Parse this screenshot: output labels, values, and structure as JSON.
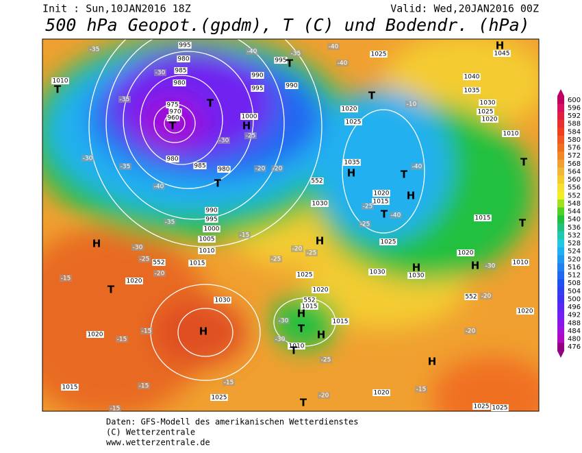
{
  "header": {
    "init": "Init : Sun,10JAN2016 18Z",
    "valid": "Valid: Wed,20JAN2016 00Z",
    "title": "500 hPa Geopot.(gpdm), T (C) und Bodendr. (hPa)"
  },
  "colorbar": {
    "ticks": [
      600,
      596,
      592,
      588,
      584,
      580,
      576,
      572,
      568,
      564,
      560,
      556,
      552,
      548,
      544,
      540,
      536,
      532,
      528,
      524,
      520,
      516,
      512,
      508,
      504,
      500,
      496,
      492,
      488,
      484,
      480,
      476
    ],
    "colors": [
      "#c00060",
      "#d81060",
      "#e02040",
      "#e83030",
      "#f04020",
      "#f05a20",
      "#f07020",
      "#f08828",
      "#f0a030",
      "#f0b838",
      "#f4cc30",
      "#f8e030",
      "#f0f020",
      "#a0e020",
      "#50d020",
      "#20c040",
      "#20c080",
      "#20c8b0",
      "#20c8e0",
      "#20b0f0",
      "#2098f0",
      "#2080f0",
      "#2068f0",
      "#2050f0",
      "#3040f0",
      "#4030f0",
      "#5a28f0",
      "#7020f0",
      "#8818e8",
      "#a010d8",
      "#b008c0",
      "#900080"
    ]
  },
  "map": {
    "labels": [
      "995",
      "980",
      "985",
      "980",
      "975",
      "970",
      "960",
      "980",
      "985",
      "980",
      "990",
      "995",
      "1000",
      "1005",
      "1010",
      "1015",
      "1020",
      "1030",
      "1020",
      "1015",
      "1025",
      "1020",
      "1025",
      "1025",
      "1010",
      "995",
      "990",
      "995",
      "990",
      "1000",
      "1025",
      "1020",
      "1025",
      "1035",
      "1030",
      "1020",
      "1015",
      "1025",
      "1030",
      "1030",
      "1025",
      "1020",
      "1015",
      "1015",
      "1010",
      "1040",
      "1035",
      "1030",
      "1025",
      "1020",
      "1010",
      "1015",
      "1020",
      "1010",
      "1020",
      "1045",
      "-35",
      "-30",
      "-35",
      "-30",
      "-35",
      "-40",
      "-35",
      "-30",
      "-25",
      "-20",
      "-15",
      "-15",
      "-15",
      "-15",
      "-15",
      "-15",
      "-40",
      "-35",
      "-40",
      "-40",
      "-30",
      "-25",
      "-20",
      "-20",
      "-15",
      "-25",
      "-20",
      "-25",
      "-30",
      "-30",
      "-25",
      "-20",
      "-20",
      "-15",
      "-10",
      "-40",
      "-40",
      "-25",
      "-30",
      "-25",
      "-20",
      "552",
      "552",
      "552",
      "552",
      "T",
      "T",
      "H",
      "T",
      "T",
      "H",
      "T",
      "H",
      "H",
      "T",
      "H",
      "H",
      "T",
      "T",
      "H",
      "H",
      "T",
      "T",
      "H",
      "T",
      "H",
      "T",
      "H",
      "T",
      "H",
      "T"
    ]
  },
  "footer": {
    "lines": [
      "Daten: GFS-Modell des amerikanischen Wetterdienstes",
      "(C) Wetterzentrale",
      "www.wetterzentrale.de"
    ]
  }
}
